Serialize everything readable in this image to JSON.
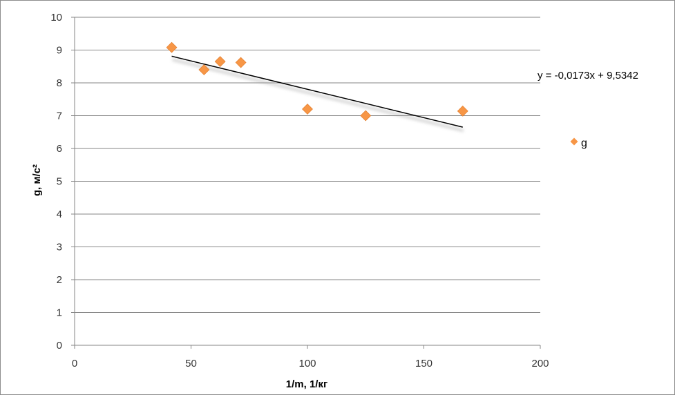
{
  "chart_data": {
    "type": "scatter",
    "title": "",
    "xlabel": "1/m, 1/кг",
    "ylabel": "g, м/с²",
    "xlim": [
      0,
      200
    ],
    "ylim": [
      0,
      10
    ],
    "x_ticks": [
      0,
      50,
      100,
      150,
      200
    ],
    "y_ticks": [
      0,
      1,
      2,
      3,
      4,
      5,
      6,
      7,
      8,
      9,
      10
    ],
    "grid": "horizontal",
    "legend_position": "right",
    "series": [
      {
        "name": "g",
        "color": "#f79646",
        "marker": "diamond",
        "points": [
          {
            "x": 41.7,
            "y": 9.08
          },
          {
            "x": 55.6,
            "y": 8.4
          },
          {
            "x": 62.5,
            "y": 8.65
          },
          {
            "x": 71.4,
            "y": 8.62
          },
          {
            "x": 100,
            "y": 7.2
          },
          {
            "x": 125,
            "y": 7.0
          },
          {
            "x": 166.7,
            "y": 7.14
          }
        ]
      }
    ],
    "trendline": {
      "type": "linear",
      "slope": -0.0173,
      "intercept": 9.5342,
      "x_range": [
        41.7,
        166.7
      ],
      "color": "#000000",
      "equation_label": "y = -0,0173x + 9,5342"
    }
  }
}
